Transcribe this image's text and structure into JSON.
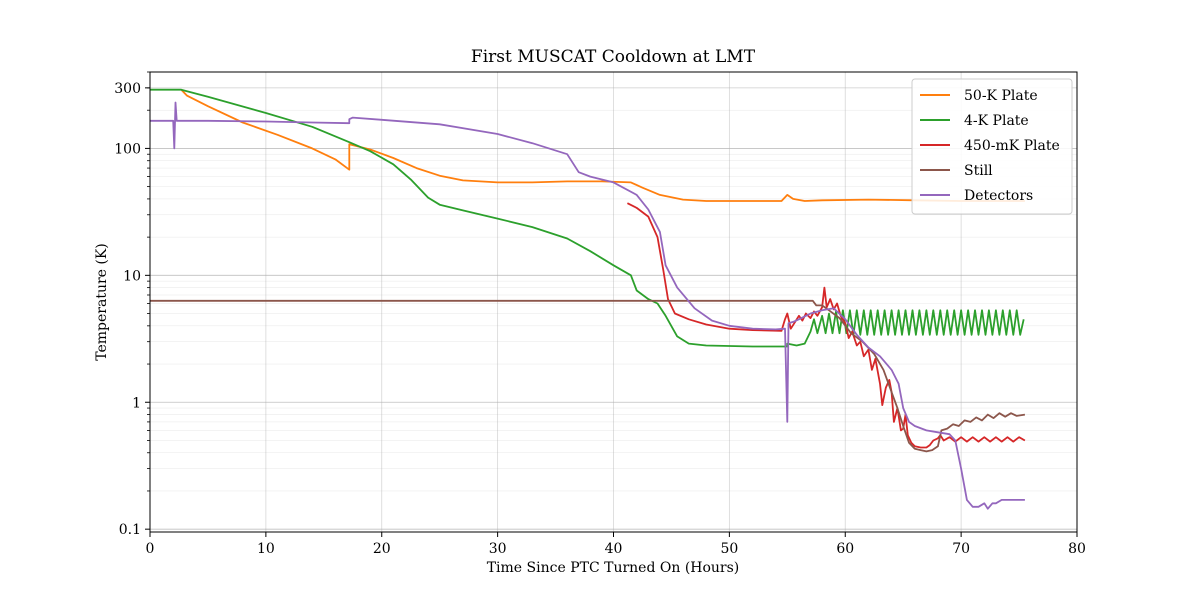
{
  "chart_data": {
    "type": "line",
    "title": "First MUSCAT Cooldown at LMT",
    "xlabel": "Time Since PTC Turned On (Hours)",
    "ylabel": "Temperature (K)",
    "xlim": [
      0,
      80
    ],
    "ylim": [
      0.095,
      400
    ],
    "yscale": "log",
    "xticks": [
      0,
      10,
      20,
      30,
      40,
      50,
      60,
      70,
      80
    ],
    "yticks": [
      0.1,
      1,
      10,
      100,
      300
    ],
    "ytick_labels": [
      "0.1",
      "1",
      "10",
      "100",
      "300"
    ],
    "grid": true,
    "legend_position": "upper-right",
    "series": [
      {
        "name": "50-K Plate",
        "color": "#ff7f0e",
        "points": [
          [
            2.7,
            290
          ],
          [
            3.2,
            260
          ],
          [
            5,
            215
          ],
          [
            8,
            160
          ],
          [
            11,
            128
          ],
          [
            14,
            100
          ],
          [
            16,
            82
          ],
          [
            17.2,
            68
          ],
          [
            17.2,
            108
          ],
          [
            19,
            98
          ],
          [
            21,
            84
          ],
          [
            23,
            70
          ],
          [
            25,
            61
          ],
          [
            27,
            56
          ],
          [
            30,
            54
          ],
          [
            33,
            54
          ],
          [
            36,
            55
          ],
          [
            39,
            55
          ],
          [
            41.5,
            54
          ],
          [
            42.5,
            49
          ],
          [
            44,
            43
          ],
          [
            46,
            39.5
          ],
          [
            48,
            38.5
          ],
          [
            51,
            38.5
          ],
          [
            54.5,
            38.5
          ],
          [
            55,
            43
          ],
          [
            55.5,
            40
          ],
          [
            56.5,
            38.5
          ],
          [
            58,
            39
          ],
          [
            62,
            39.5
          ],
          [
            66,
            39
          ],
          [
            70,
            38.5
          ],
          [
            75.5,
            38.5
          ]
        ]
      },
      {
        "name": "4-K Plate",
        "color": "#2ca02c",
        "points": [
          [
            0,
            290
          ],
          [
            2.7,
            290
          ],
          [
            5,
            255
          ],
          [
            10,
            190
          ],
          [
            14,
            148
          ],
          [
            17.2,
            112
          ],
          [
            19,
            95
          ],
          [
            21,
            75
          ],
          [
            22.5,
            57
          ],
          [
            24,
            41
          ],
          [
            25,
            36
          ],
          [
            27,
            32.5
          ],
          [
            30,
            28
          ],
          [
            33,
            24
          ],
          [
            36,
            19.5
          ],
          [
            38,
            15.5
          ],
          [
            40,
            12
          ],
          [
            41.5,
            10
          ],
          [
            42,
            7.6
          ],
          [
            43,
            6.5
          ],
          [
            43.8,
            6
          ],
          [
            44.5,
            4.8
          ],
          [
            45.5,
            3.3
          ],
          [
            46.5,
            2.9
          ],
          [
            48,
            2.8
          ],
          [
            52,
            2.75
          ],
          [
            55,
            2.75
          ],
          [
            55,
            2.9
          ],
          [
            55.8,
            2.8
          ],
          [
            56.5,
            2.9
          ],
          [
            57,
            3.6
          ],
          [
            57.3,
            4.5
          ],
          [
            57.6,
            3.5
          ],
          [
            58,
            4.8
          ],
          [
            58.3,
            3.5
          ],
          [
            58.6,
            5
          ],
          [
            58.9,
            3.5
          ],
          [
            59.2,
            5.2
          ],
          [
            59.5,
            3.5
          ],
          [
            59.8,
            5.3
          ],
          [
            60.1,
            3.5
          ],
          [
            60.4,
            5.3
          ],
          [
            60.7,
            3.4
          ],
          [
            61,
            5.3
          ],
          [
            61.3,
            3.4
          ],
          [
            61.6,
            5.3
          ],
          [
            61.9,
            3.4
          ],
          [
            62.2,
            5.3
          ],
          [
            62.5,
            3.4
          ],
          [
            62.8,
            5.3
          ],
          [
            63.1,
            3.4
          ],
          [
            63.4,
            5.3
          ],
          [
            63.7,
            3.4
          ],
          [
            64,
            5.3
          ],
          [
            64.3,
            3.4
          ],
          [
            64.6,
            5.3
          ],
          [
            64.9,
            3.4
          ],
          [
            65.2,
            5.3
          ],
          [
            65.5,
            3.4
          ],
          [
            65.8,
            5.3
          ],
          [
            66.1,
            3.4
          ],
          [
            66.4,
            5.3
          ],
          [
            66.7,
            3.4
          ],
          [
            67,
            5.3
          ],
          [
            67.3,
            3.4
          ],
          [
            67.6,
            5.3
          ],
          [
            67.9,
            3.4
          ],
          [
            68.2,
            5.3
          ],
          [
            68.5,
            3.4
          ],
          [
            68.8,
            5.3
          ],
          [
            69.1,
            3.4
          ],
          [
            69.4,
            5.3
          ],
          [
            69.7,
            3.4
          ],
          [
            70,
            5.3
          ],
          [
            70.3,
            3.4
          ],
          [
            70.6,
            5.3
          ],
          [
            70.9,
            3.4
          ],
          [
            71.2,
            5.3
          ],
          [
            71.5,
            3.4
          ],
          [
            71.8,
            5.3
          ],
          [
            72.1,
            3.4
          ],
          [
            72.4,
            5.3
          ],
          [
            72.7,
            3.4
          ],
          [
            73,
            5.3
          ],
          [
            73.3,
            3.4
          ],
          [
            73.6,
            5.3
          ],
          [
            73.9,
            3.4
          ],
          [
            74.2,
            5.3
          ],
          [
            74.5,
            3.4
          ],
          [
            74.8,
            5.3
          ],
          [
            75.1,
            3.4
          ],
          [
            75.4,
            4.5
          ]
        ]
      },
      {
        "name": "450-mK Plate",
        "color": "#d62728",
        "points": [
          [
            41.2,
            37
          ],
          [
            42,
            34
          ],
          [
            43,
            29
          ],
          [
            43.8,
            20
          ],
          [
            44.3,
            11
          ],
          [
            44.7,
            6.5
          ],
          [
            45.3,
            5
          ],
          [
            46.5,
            4.5
          ],
          [
            48,
            4.1
          ],
          [
            50,
            3.8
          ],
          [
            52,
            3.7
          ],
          [
            54.5,
            3.65
          ],
          [
            54.8,
            4.5
          ],
          [
            55,
            5
          ],
          [
            55.3,
            3.8
          ],
          [
            55.6,
            4.2
          ],
          [
            56,
            4.8
          ],
          [
            56.3,
            4.4
          ],
          [
            56.6,
            5
          ],
          [
            57,
            4.6
          ],
          [
            57.3,
            5.2
          ],
          [
            57.6,
            4.8
          ],
          [
            58,
            5.6
          ],
          [
            58.2,
            8
          ],
          [
            58.4,
            5.6
          ],
          [
            58.7,
            6.5
          ],
          [
            59,
            5.4
          ],
          [
            59.3,
            6
          ],
          [
            59.6,
            4.8
          ],
          [
            60,
            4.2
          ],
          [
            60.3,
            3.2
          ],
          [
            60.6,
            3.6
          ],
          [
            61,
            2.8
          ],
          [
            61.3,
            3
          ],
          [
            61.6,
            2.3
          ],
          [
            62,
            2.6
          ],
          [
            62.3,
            1.8
          ],
          [
            62.6,
            2.2
          ],
          [
            63,
            1.4
          ],
          [
            63.2,
            0.95
          ],
          [
            63.5,
            1.3
          ],
          [
            63.8,
            1.5
          ],
          [
            64,
            1.2
          ],
          [
            64.2,
            0.7
          ],
          [
            64.5,
            0.9
          ],
          [
            64.8,
            0.6
          ],
          [
            65,
            0.62
          ],
          [
            65.2,
            0.8
          ],
          [
            65.4,
            0.55
          ],
          [
            65.7,
            0.48
          ],
          [
            66,
            0.45
          ],
          [
            66.5,
            0.44
          ],
          [
            67,
            0.44
          ],
          [
            67.3,
            0.46
          ],
          [
            67.6,
            0.5
          ],
          [
            68,
            0.52
          ],
          [
            68.2,
            0.55
          ],
          [
            68.5,
            0.5
          ],
          [
            69,
            0.53
          ],
          [
            69.5,
            0.49
          ],
          [
            70,
            0.53
          ],
          [
            70.5,
            0.49
          ],
          [
            71,
            0.53
          ],
          [
            71.5,
            0.49
          ],
          [
            72,
            0.53
          ],
          [
            72.5,
            0.49
          ],
          [
            73,
            0.53
          ],
          [
            73.5,
            0.49
          ],
          [
            74,
            0.53
          ],
          [
            74.5,
            0.49
          ],
          [
            75,
            0.53
          ],
          [
            75.5,
            0.5
          ]
        ]
      },
      {
        "name": "Still",
        "color": "#8c564b",
        "points": [
          [
            0,
            6.3
          ],
          [
            30,
            6.3
          ],
          [
            57,
            6.3
          ],
          [
            57.2,
            6.3
          ],
          [
            57.5,
            5.8
          ],
          [
            58,
            5.8
          ],
          [
            58.6,
            5.3
          ],
          [
            59.5,
            4.6
          ],
          [
            60.5,
            3.5
          ],
          [
            61.5,
            3
          ],
          [
            62.5,
            2.4
          ],
          [
            63.3,
            1.8
          ],
          [
            64,
            1.2
          ],
          [
            64.5,
            0.9
          ],
          [
            65,
            0.65
          ],
          [
            65.5,
            0.48
          ],
          [
            66,
            0.43
          ],
          [
            66.5,
            0.42
          ],
          [
            67,
            0.41
          ],
          [
            67.5,
            0.42
          ],
          [
            68,
            0.45
          ],
          [
            68.3,
            0.6
          ],
          [
            68.8,
            0.62
          ],
          [
            69.3,
            0.67
          ],
          [
            69.8,
            0.65
          ],
          [
            70.3,
            0.72
          ],
          [
            70.8,
            0.7
          ],
          [
            71.3,
            0.76
          ],
          [
            71.8,
            0.72
          ],
          [
            72.3,
            0.8
          ],
          [
            72.8,
            0.75
          ],
          [
            73.3,
            0.82
          ],
          [
            73.8,
            0.77
          ],
          [
            74.3,
            0.82
          ],
          [
            74.8,
            0.78
          ],
          [
            75.5,
            0.8
          ]
        ]
      },
      {
        "name": "Detectors",
        "color": "#9467bd",
        "points": [
          [
            0,
            165
          ],
          [
            2,
            165
          ],
          [
            2.1,
            100
          ],
          [
            2.2,
            230
          ],
          [
            2.3,
            165
          ],
          [
            5,
            165
          ],
          [
            10,
            163
          ],
          [
            14,
            160
          ],
          [
            17.2,
            158
          ],
          [
            17.2,
            170
          ],
          [
            17.5,
            175
          ],
          [
            20,
            168
          ],
          [
            25,
            155
          ],
          [
            30,
            130
          ],
          [
            33,
            110
          ],
          [
            36,
            90
          ],
          [
            37,
            65
          ],
          [
            38,
            60
          ],
          [
            40,
            54
          ],
          [
            42,
            43
          ],
          [
            43,
            33
          ],
          [
            44,
            22
          ],
          [
            44.5,
            12
          ],
          [
            45.5,
            8
          ],
          [
            47,
            5.5
          ],
          [
            48.5,
            4.4
          ],
          [
            50,
            4
          ],
          [
            52,
            3.8
          ],
          [
            54,
            3.75
          ],
          [
            54.8,
            3.8
          ],
          [
            55,
            0.7
          ],
          [
            55.1,
            4.2
          ],
          [
            55.5,
            4.3
          ],
          [
            56,
            4.5
          ],
          [
            57,
            5
          ],
          [
            58,
            5.3
          ],
          [
            59,
            5.5
          ],
          [
            60,
            4.5
          ],
          [
            61,
            3.4
          ],
          [
            62,
            2.7
          ],
          [
            63,
            2.3
          ],
          [
            64,
            1.8
          ],
          [
            64.6,
            1.4
          ],
          [
            65,
            0.9
          ],
          [
            65.5,
            0.7
          ],
          [
            66,
            0.65
          ],
          [
            67,
            0.6
          ],
          [
            68,
            0.58
          ],
          [
            69,
            0.56
          ],
          [
            69.5,
            0.5
          ],
          [
            70,
            0.3
          ],
          [
            70.5,
            0.17
          ],
          [
            71,
            0.15
          ],
          [
            71.5,
            0.15
          ],
          [
            72,
            0.16
          ],
          [
            72.3,
            0.145
          ],
          [
            72.7,
            0.16
          ],
          [
            73,
            0.16
          ],
          [
            73.5,
            0.17
          ],
          [
            74,
            0.17
          ],
          [
            75.5,
            0.17
          ]
        ]
      }
    ]
  }
}
